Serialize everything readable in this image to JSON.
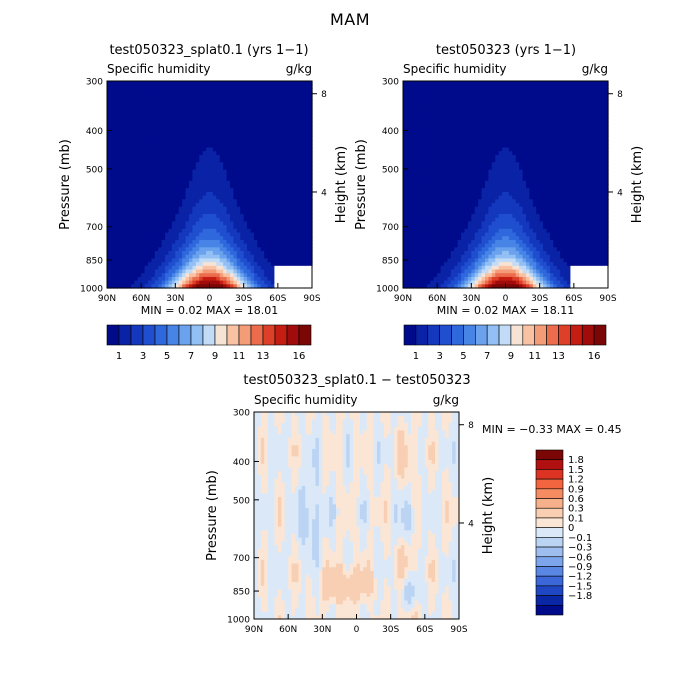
{
  "figure_title": "MAM",
  "chart_data": [
    {
      "type": "heatmap",
      "title": "test050323_splat0.1 (yrs 1−1)",
      "subtitle_left": "Specific humidity",
      "subtitle_right": "g/kg",
      "xlabel": "",
      "ylabel": "Pressure (mb)",
      "ylabel_right": "Height (km)",
      "xticks": [
        "90N",
        "60N",
        "30N",
        "0",
        "30S",
        "60S",
        "90S"
      ],
      "xlim": [
        90,
        -90
      ],
      "yticks": [
        300,
        400,
        500,
        700,
        850,
        1000
      ],
      "ylim": [
        1000,
        300
      ],
      "yscale": "log",
      "right_ticks": [
        4,
        8
      ],
      "min_text": "MIN =    0.02    MAX =   18.01",
      "min": 0.02,
      "max": 18.01,
      "colorbar_labels": [
        "1",
        "3",
        "5",
        "7",
        "9",
        "11",
        "13",
        "16"
      ],
      "colorbar_orientation": "horizontal"
    },
    {
      "type": "heatmap",
      "title": "test050323 (yrs 1−1)",
      "subtitle_left": "Specific humidity",
      "subtitle_right": "g/kg",
      "xlabel": "",
      "ylabel": "Pressure (mb)",
      "ylabel_right": "Height (km)",
      "xticks": [
        "90N",
        "60N",
        "30N",
        "0",
        "30S",
        "60S",
        "90S"
      ],
      "xlim": [
        90,
        -90
      ],
      "yticks": [
        300,
        400,
        500,
        700,
        850,
        1000
      ],
      "ylim": [
        1000,
        300
      ],
      "yscale": "log",
      "right_ticks": [
        4,
        8
      ],
      "min_text": "MIN =    0.02    MAX =   18.11",
      "min": 0.02,
      "max": 18.11,
      "colorbar_labels": [
        "1",
        "3",
        "5",
        "7",
        "9",
        "11",
        "13",
        "16"
      ],
      "colorbar_orientation": "horizontal"
    },
    {
      "type": "heatmap",
      "title": "test050323_splat0.1 − test050323",
      "subtitle_left": "Specific humidity",
      "subtitle_right": "g/kg",
      "xlabel": "",
      "ylabel": "Pressure (mb)",
      "ylabel_right": "Height (km)",
      "xticks": [
        "90N",
        "60N",
        "30N",
        "0",
        "30S",
        "60S",
        "90S"
      ],
      "xlim": [
        90,
        -90
      ],
      "yticks": [
        300,
        400,
        500,
        700,
        850,
        1000
      ],
      "ylim": [
        1000,
        300
      ],
      "yscale": "log",
      "right_ticks": [
        4,
        8
      ],
      "min_text": "MIN =   −0.33    MAX =    0.45",
      "min": -0.33,
      "max": 0.45,
      "colorbar_labels": [
        "1.8",
        "1.5",
        "1.2",
        "0.9",
        "0.6",
        "0.3",
        "0.1",
        "0",
        "−0.1",
        "−0.3",
        "−0.6",
        "−0.9",
        "−1.2",
        "−1.5",
        "−1.8"
      ],
      "colorbar_orientation": "vertical"
    }
  ],
  "colors": {
    "humidity_scale": [
      "#000b8c",
      "#0a23a6",
      "#1438bd",
      "#1f4fcf",
      "#2f68dc",
      "#4784e6",
      "#6aa2ee",
      "#93c0f4",
      "#c2dcf8",
      "#f7e3d4",
      "#f9c2a3",
      "#f49b78",
      "#ec6d4d",
      "#dd3f28",
      "#c61d13",
      "#a00b0b",
      "#7a0606"
    ],
    "diff_scale": [
      "#7a0606",
      "#b01010",
      "#dd3322",
      "#f2653e",
      "#f58c61",
      "#f6b08a",
      "#f8cfb2",
      "#fbe6d6",
      "#dae8f8",
      "#bcd4f3",
      "#9ebef0",
      "#7da5ec",
      "#5a86e4",
      "#3c67d9",
      "#1f47c4",
      "#0a27a5",
      "#000b8c"
    ]
  }
}
